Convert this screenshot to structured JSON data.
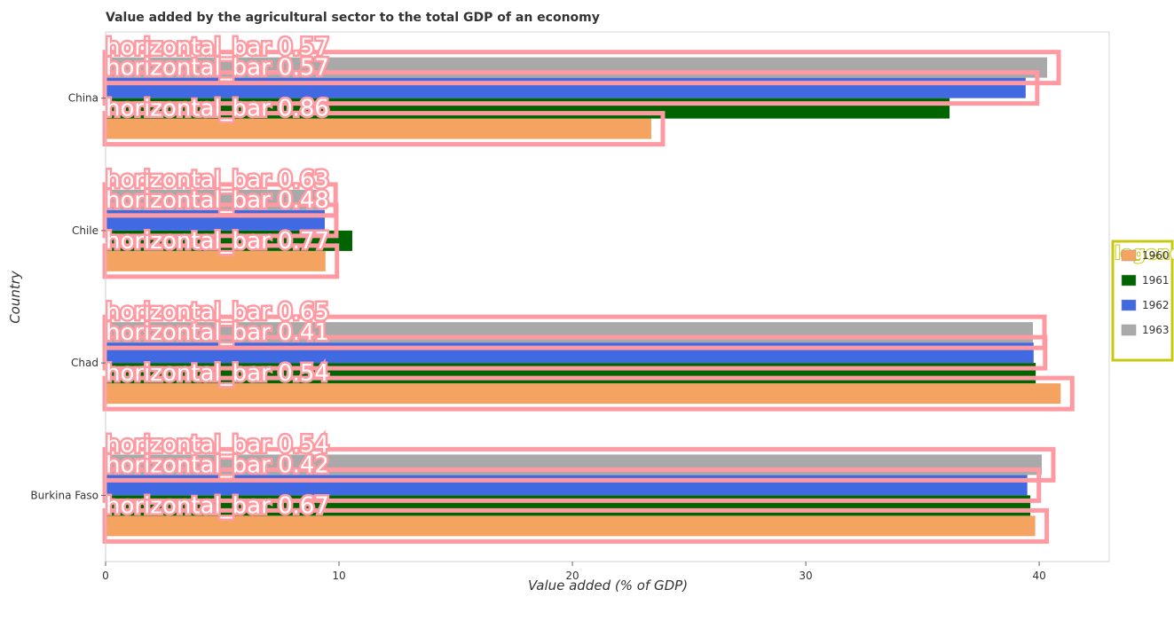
{
  "chart_data": {
    "type": "bar",
    "orientation": "horizontal",
    "title": "Value added by the agricultural sector to the total GDP of an economy",
    "xlabel": "Value added (% of GDP)",
    "ylabel": "Country",
    "xlim": [
      0,
      43
    ],
    "xticks": [
      0,
      10,
      20,
      30,
      40
    ],
    "categories": [
      "Burkina Faso",
      "Chad",
      "Chile",
      "China"
    ],
    "series": [
      {
        "name": "1960",
        "color": "#f4a460",
        "values": [
          39.83,
          40.92,
          9.42,
          23.38
        ]
      },
      {
        "name": "1961",
        "color": "#006400",
        "values": [
          39.62,
          39.85,
          10.57,
          36.16
        ]
      },
      {
        "name": "1962",
        "color": "#4169e1",
        "values": [
          39.49,
          39.76,
          9.39,
          39.42
        ]
      },
      {
        "name": "1963",
        "color": "#a9a9a9",
        "values": [
          40.11,
          39.73,
          9.36,
          40.34
        ]
      }
    ],
    "legend": {
      "title": "legend",
      "placement": "right"
    },
    "grid": false,
    "overlay_labels": [
      {
        "text": "horizontal_bar  0.54",
        "category": "Burkina Faso",
        "series": "1963"
      },
      {
        "text": "horizontal_bar  0.42",
        "category": "Burkina Faso",
        "series": "1962"
      },
      {
        "text": "horizontal_bar  0.67",
        "category": "Burkina Faso",
        "series": "1960"
      },
      {
        "text": "horizontal_bar  0.65",
        "category": "Chad",
        "series": "1963"
      },
      {
        "text": "horizontal_bar  0.41",
        "category": "Chad",
        "series": "1962"
      },
      {
        "text": "horizontal_bar  0.54",
        "category": "Chad",
        "series": "1960"
      },
      {
        "text": "horizontal_bar  0.63",
        "category": "Chile",
        "series": "1963"
      },
      {
        "text": "horizontal_bar  0.48",
        "category": "Chile",
        "series": "1962"
      },
      {
        "text": "horizontal_bar  0.77",
        "category": "Chile",
        "series": "1960"
      },
      {
        "text": "horizontal_bar  0.57",
        "category": "China",
        "series": "1963"
      },
      {
        "text": "horizontal_bar  0.57",
        "category": "China",
        "series": "1962"
      },
      {
        "text": "horizontal_bar  0.86",
        "category": "China",
        "series": "1960"
      }
    ]
  }
}
